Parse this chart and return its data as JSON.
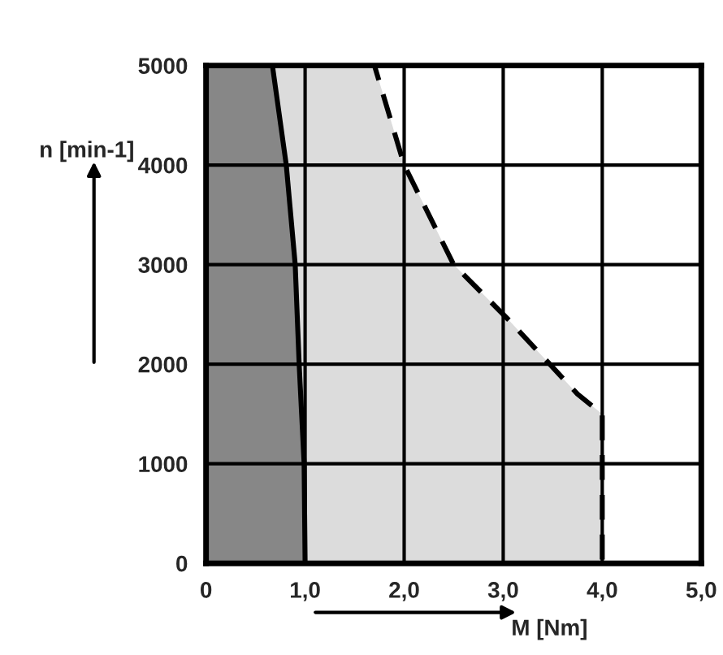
{
  "chart_data": {
    "type": "area",
    "xlabel": "M [Nm]",
    "ylabel": "n [min-1]",
    "series": [
      {
        "color": "#dcdcdc",
        "line_style": "dashed",
        "x": [
          0,
          1.7,
          2.0,
          2.5,
          3.05,
          3.75,
          4.0,
          4.0
        ],
        "values": [
          5000,
          5000,
          4000,
          3000,
          2450,
          1700,
          1500,
          0
        ]
      },
      {
        "color": "#878787",
        "line_style": "solid",
        "x": [
          0,
          0.67,
          0.81,
          0.9,
          0.94,
          0.99,
          1.0
        ],
        "values": [
          5000,
          5000,
          4000,
          3000,
          2000,
          1000,
          0
        ]
      }
    ],
    "xlim": [
      0,
      5
    ],
    "xticks": [
      0,
      {
        "value": 1,
        "label": "1,0"
      },
      {
        "value": 2,
        "label": "2,0"
      },
      {
        "value": 3,
        "label": "3,0"
      },
      {
        "value": 4,
        "label": "4,0"
      },
      {
        "value": 5,
        "label": "5,0"
      }
    ],
    "ylim": [
      0,
      5000
    ],
    "yticks": [
      0,
      1000,
      2000,
      3000,
      4000,
      5000
    ],
    "grid": true
  }
}
